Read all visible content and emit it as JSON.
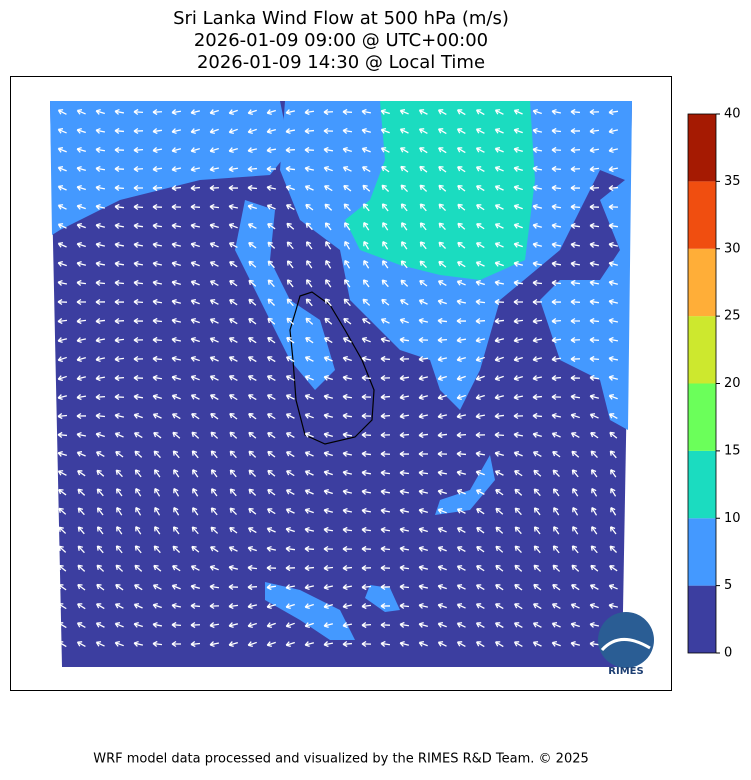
{
  "title": [
    "Sri Lanka Wind Flow at 500 hPa (m/s)",
    "2026-01-09 09:00 @ UTC+00:00",
    "2026-01-09 14:30 @ Local Time"
  ],
  "colorbar": {
    "lim": [
      0,
      40
    ],
    "ticks": [
      0,
      5,
      10,
      15,
      20,
      25,
      30,
      35,
      40
    ],
    "colors": [
      "#3c3ea0",
      "#4499ff",
      "#1bdcc0",
      "#6bff5a",
      "#cde82e",
      "#ffae38",
      "#f04e10",
      "#a51a02"
    ]
  },
  "logo": "RIMES",
  "footer": "WRF model data processed and visualized by the RIMES R&D Team. © 2025"
}
